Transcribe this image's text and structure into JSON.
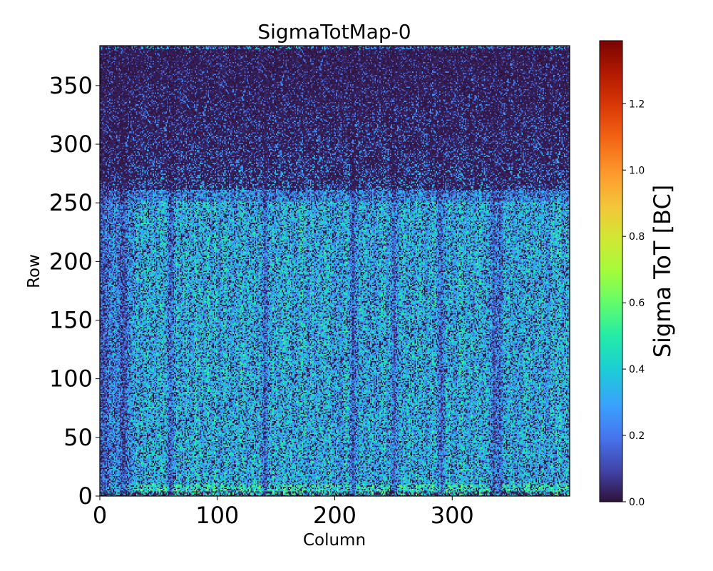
{
  "chart_data": {
    "type": "heatmap",
    "title": "SigmaTotMap-0",
    "xlabel": "Column",
    "ylabel": "Row",
    "colorbar_label": "Sigma ToT [BC]",
    "colormap": "turbo",
    "xlim": [
      0,
      400
    ],
    "ylim": [
      0,
      384
    ],
    "vlim": [
      0,
      1.39
    ],
    "x_ticks": [
      {
        "value": 0,
        "label": "0"
      },
      {
        "value": 100,
        "label": "100"
      },
      {
        "value": 200,
        "label": "200"
      },
      {
        "value": 300,
        "label": "300"
      }
    ],
    "y_ticks": [
      {
        "value": 0,
        "label": "0"
      },
      {
        "value": 50,
        "label": "50"
      },
      {
        "value": 100,
        "label": "100"
      },
      {
        "value": 150,
        "label": "150"
      },
      {
        "value": 200,
        "label": "200"
      },
      {
        "value": 250,
        "label": "250"
      },
      {
        "value": 300,
        "label": "300"
      },
      {
        "value": 350,
        "label": "350"
      }
    ],
    "colorbar_ticks": [
      {
        "value": 0.0,
        "label": "0.0"
      },
      {
        "value": 0.2,
        "label": "0.2"
      },
      {
        "value": 0.4,
        "label": "0.4"
      },
      {
        "value": 0.6,
        "label": "0.6"
      },
      {
        "value": 0.8,
        "label": "0.8"
      },
      {
        "value": 1.0,
        "label": "1.0"
      },
      {
        "value": 1.2,
        "label": "1.2"
      }
    ],
    "grid": false,
    "dark_columns": [
      20,
      60,
      140,
      215,
      250,
      290,
      335,
      340
    ],
    "typical_values": {
      "top_rows_300_384": 0.05,
      "center_rows_20_250": 0.35,
      "bottom_edge_rows_0_10": 0.45
    }
  }
}
